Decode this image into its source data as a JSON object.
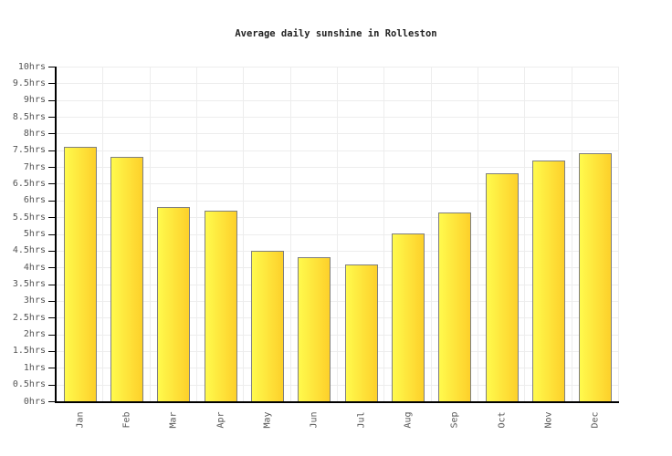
{
  "title": "Average daily sunshine in Rolleston",
  "colors": {
    "background": "#ffffff",
    "axis": "#000000",
    "gridline": "#ededed",
    "tick_label": "#555555",
    "title_text": "#222222",
    "bar_gradient_left": "#fffa4d",
    "bar_gradient_right": "#fdd02a",
    "bar_border": "#7f7f7f"
  },
  "chart_data": {
    "type": "bar",
    "title": "Average daily sunshine in Rolleston",
    "categories": [
      "Jan",
      "Feb",
      "Mar",
      "Apr",
      "May",
      "Jun",
      "Jul",
      "Aug",
      "Sep",
      "Oct",
      "Nov",
      "Dec"
    ],
    "values": [
      7.6,
      7.3,
      5.8,
      5.7,
      4.5,
      4.3,
      4.1,
      5.0,
      5.65,
      6.8,
      7.2,
      7.4
    ],
    "xlabel": "",
    "ylabel": "",
    "ylim": [
      0,
      10
    ],
    "ytick_step": 0.5,
    "ytick_labels": [
      "0hrs",
      "0.5hrs",
      "1hrs",
      "1.5hrs",
      "2hrs",
      "2.5hrs",
      "3hrs",
      "3.5hrs",
      "4hrs",
      "4.5hrs",
      "5hrs",
      "5.5hrs",
      "6hrs",
      "6.5hrs",
      "7hrs",
      "7.5hrs",
      "8hrs",
      "8.5hrs",
      "9hrs",
      "9.5hrs",
      "10hrs"
    ],
    "grid": true,
    "legend": "none",
    "bar_orientation": "vertical"
  }
}
